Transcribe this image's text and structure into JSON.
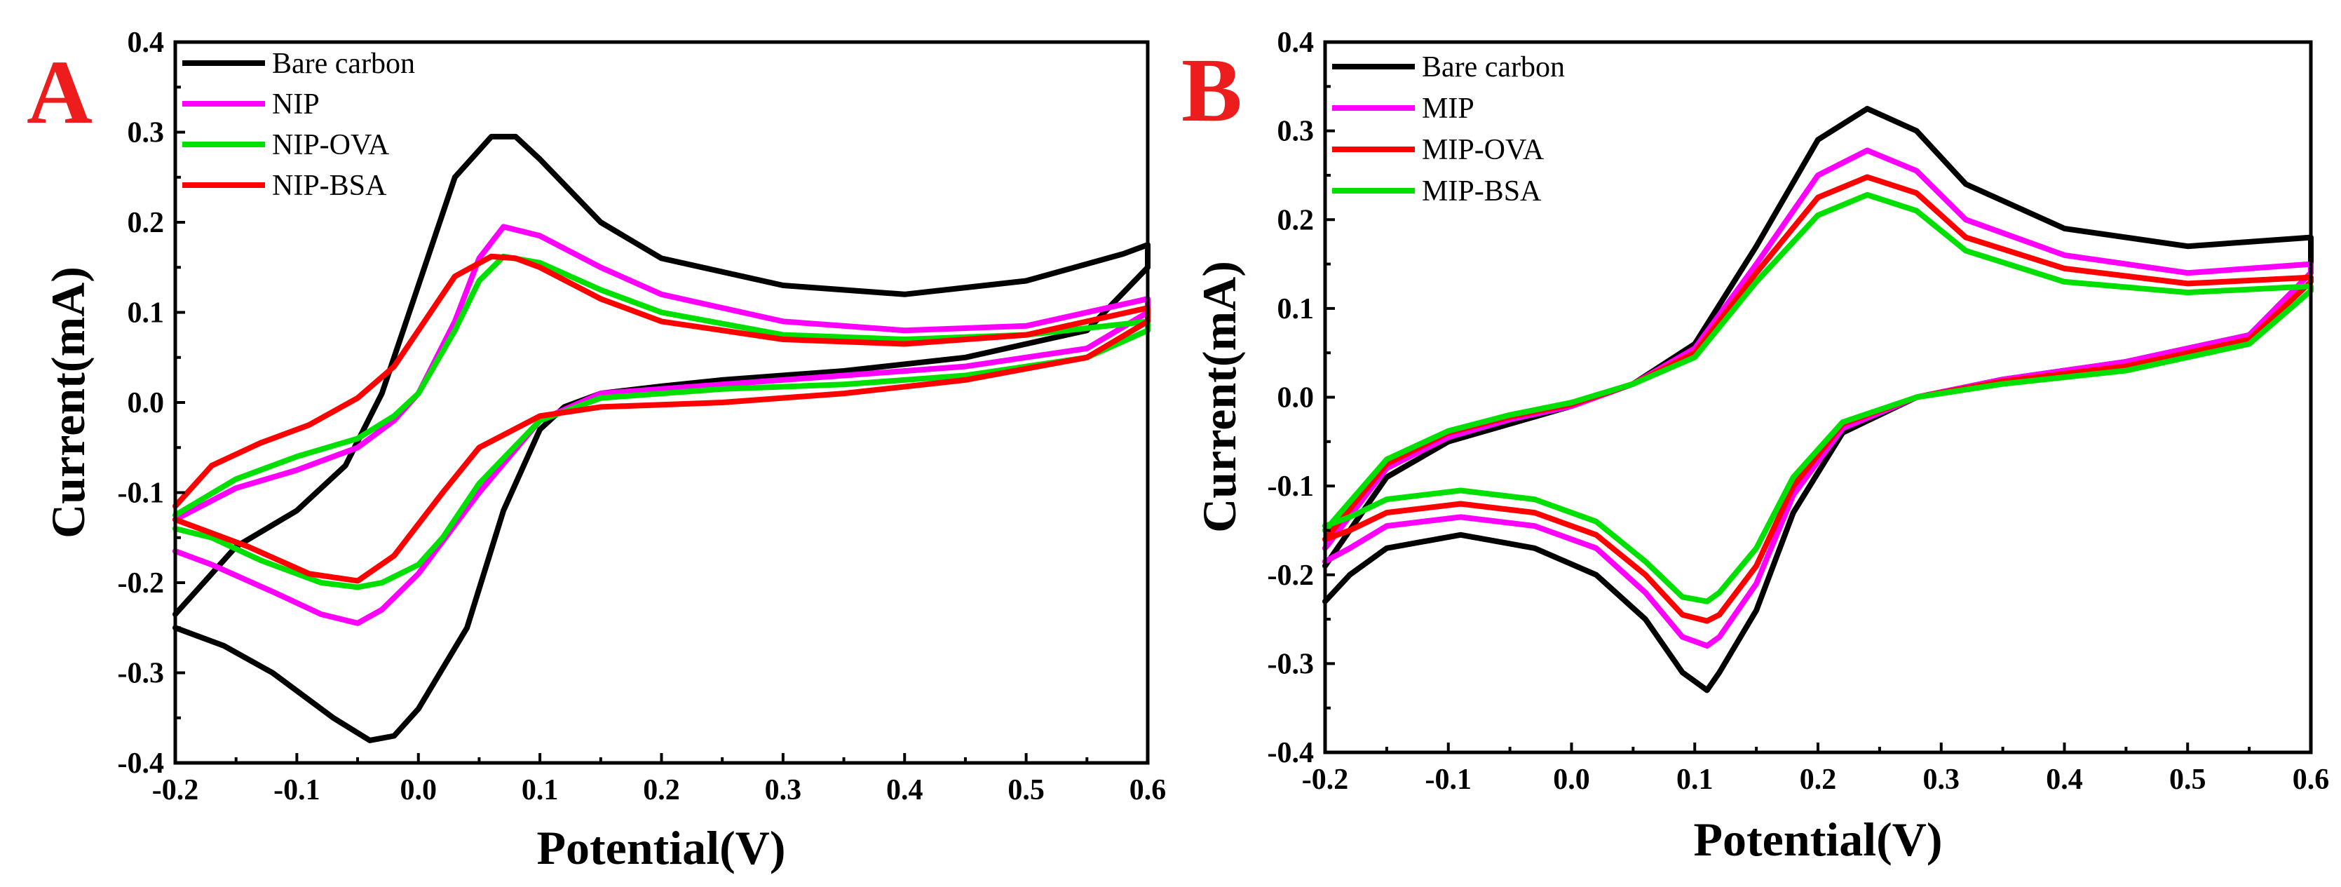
{
  "chart_data": [
    {
      "type": "line",
      "panel_label": "A",
      "xlabel": "Potential(V)",
      "ylabel": "Current(mA)",
      "xlim": [
        -0.2,
        0.6
      ],
      "ylim": [
        -0.4,
        0.4
      ],
      "xticks": [
        "-0.2",
        "-0.1",
        "0.0",
        "0.1",
        "0.2",
        "0.3",
        "0.4",
        "0.5",
        "0.6"
      ],
      "yticks": [
        "0.4",
        "0.3",
        "0.2",
        "0.1",
        "0.0",
        "-0.1",
        "-0.2",
        "-0.3",
        "-0.4"
      ],
      "legend_position": "top-left",
      "series": [
        {
          "name": "Bare carbon",
          "color": "#000000",
          "x": [
            -0.2,
            -0.15,
            -0.1,
            -0.06,
            -0.03,
            0.0,
            0.03,
            0.06,
            0.08,
            0.1,
            0.15,
            0.2,
            0.3,
            0.4,
            0.5,
            0.58,
            0.6,
            0.6,
            0.55,
            0.45,
            0.35,
            0.25,
            0.2,
            0.15,
            0.12,
            0.1,
            0.07,
            0.04,
            0.0,
            -0.02,
            -0.04,
            -0.07,
            -0.12,
            -0.16,
            -0.2
          ],
          "y": [
            -0.235,
            -0.16,
            -0.12,
            -0.07,
            0.01,
            0.13,
            0.25,
            0.295,
            0.295,
            0.27,
            0.2,
            0.16,
            0.13,
            0.12,
            0.135,
            0.165,
            0.175,
            0.15,
            0.08,
            0.05,
            0.035,
            0.025,
            0.018,
            0.01,
            -0.005,
            -0.03,
            -0.12,
            -0.25,
            -0.34,
            -0.37,
            -0.375,
            -0.35,
            -0.3,
            -0.27,
            -0.25
          ]
        },
        {
          "name": "NIP",
          "color": "#ff00ff",
          "x": [
            -0.2,
            -0.15,
            -0.1,
            -0.05,
            -0.02,
            0.0,
            0.03,
            0.05,
            0.07,
            0.1,
            0.15,
            0.2,
            0.3,
            0.4,
            0.5,
            0.6,
            0.6,
            0.55,
            0.45,
            0.35,
            0.25,
            0.15,
            0.1,
            0.05,
            0.0,
            -0.03,
            -0.05,
            -0.08,
            -0.12,
            -0.17,
            -0.2
          ],
          "y": [
            -0.13,
            -0.095,
            -0.075,
            -0.05,
            -0.02,
            0.01,
            0.09,
            0.16,
            0.195,
            0.185,
            0.15,
            0.12,
            0.09,
            0.08,
            0.085,
            0.115,
            0.1,
            0.06,
            0.04,
            0.03,
            0.02,
            0.01,
            -0.02,
            -0.1,
            -0.19,
            -0.23,
            -0.245,
            -0.235,
            -0.21,
            -0.18,
            -0.165
          ]
        },
        {
          "name": "NIP-OVA",
          "color": "#00e000",
          "x": [
            -0.2,
            -0.15,
            -0.1,
            -0.05,
            -0.02,
            0.0,
            0.03,
            0.05,
            0.07,
            0.1,
            0.15,
            0.2,
            0.3,
            0.4,
            0.5,
            0.6,
            0.6,
            0.55,
            0.45,
            0.35,
            0.25,
            0.15,
            0.1,
            0.05,
            0.02,
            0.0,
            -0.03,
            -0.05,
            -0.08,
            -0.13,
            -0.17,
            -0.2
          ],
          "y": [
            -0.125,
            -0.085,
            -0.06,
            -0.04,
            -0.015,
            0.01,
            0.08,
            0.135,
            0.162,
            0.155,
            0.125,
            0.1,
            0.075,
            0.07,
            0.075,
            0.09,
            0.08,
            0.05,
            0.03,
            0.02,
            0.015,
            0.005,
            -0.02,
            -0.09,
            -0.15,
            -0.18,
            -0.2,
            -0.205,
            -0.2,
            -0.175,
            -0.15,
            -0.14
          ]
        },
        {
          "name": "NIP-BSA",
          "color": "#ff0000",
          "x": [
            -0.2,
            -0.17,
            -0.13,
            -0.09,
            -0.05,
            -0.02,
            0.0,
            0.03,
            0.06,
            0.08,
            0.1,
            0.15,
            0.2,
            0.3,
            0.4,
            0.5,
            0.6,
            0.6,
            0.55,
            0.45,
            0.35,
            0.25,
            0.15,
            0.1,
            0.05,
            0.02,
            -0.02,
            -0.05,
            -0.09,
            -0.14,
            -0.2
          ],
          "y": [
            -0.115,
            -0.07,
            -0.045,
            -0.025,
            0.005,
            0.04,
            0.08,
            0.14,
            0.162,
            0.16,
            0.15,
            0.115,
            0.09,
            0.07,
            0.065,
            0.075,
            0.105,
            0.09,
            0.05,
            0.025,
            0.01,
            0.0,
            -0.005,
            -0.015,
            -0.05,
            -0.1,
            -0.17,
            -0.198,
            -0.19,
            -0.16,
            -0.13
          ]
        }
      ]
    },
    {
      "type": "line",
      "panel_label": "B",
      "xlabel": "Potential(V)",
      "ylabel": "Current(mA)",
      "xlim": [
        -0.2,
        0.6
      ],
      "ylim": [
        -0.4,
        0.4
      ],
      "xticks": [
        "-0.2",
        "-0.1",
        "0.0",
        "0.1",
        "0.2",
        "0.3",
        "0.4",
        "0.5",
        "0.6"
      ],
      "yticks": [
        "0.4",
        "0.3",
        "0.2",
        "0.1",
        "0.0",
        "-0.1",
        "-0.2",
        "-0.3",
        "-0.4"
      ],
      "legend_position": "top-left",
      "series": [
        {
          "name": "Bare carbon",
          "color": "#000000",
          "x": [
            -0.2,
            -0.15,
            -0.1,
            -0.05,
            0.0,
            0.05,
            0.1,
            0.15,
            0.2,
            0.24,
            0.28,
            0.32,
            0.4,
            0.5,
            0.6,
            0.6,
            0.55,
            0.45,
            0.35,
            0.28,
            0.22,
            0.18,
            0.15,
            0.12,
            0.11,
            0.09,
            0.06,
            0.02,
            -0.03,
            -0.09,
            -0.15,
            -0.18,
            -0.2
          ],
          "y": [
            -0.19,
            -0.09,
            -0.05,
            -0.03,
            -0.01,
            0.015,
            0.06,
            0.17,
            0.29,
            0.325,
            0.3,
            0.24,
            0.19,
            0.17,
            0.18,
            0.14,
            0.07,
            0.04,
            0.02,
            0.0,
            -0.04,
            -0.13,
            -0.24,
            -0.31,
            -0.33,
            -0.31,
            -0.25,
            -0.2,
            -0.17,
            -0.155,
            -0.17,
            -0.2,
            -0.23
          ]
        },
        {
          "name": "MIP",
          "color": "#ff00ff",
          "x": [
            -0.2,
            -0.15,
            -0.1,
            -0.05,
            0.0,
            0.05,
            0.1,
            0.15,
            0.2,
            0.24,
            0.28,
            0.32,
            0.4,
            0.5,
            0.6,
            0.6,
            0.55,
            0.45,
            0.35,
            0.28,
            0.22,
            0.18,
            0.15,
            0.12,
            0.11,
            0.09,
            0.06,
            0.02,
            -0.03,
            -0.09,
            -0.15,
            -0.18,
            -0.2
          ],
          "y": [
            -0.17,
            -0.08,
            -0.045,
            -0.025,
            -0.01,
            0.015,
            0.055,
            0.15,
            0.25,
            0.278,
            0.255,
            0.2,
            0.16,
            0.14,
            0.15,
            0.14,
            0.07,
            0.04,
            0.02,
            0.0,
            -0.035,
            -0.11,
            -0.21,
            -0.27,
            -0.28,
            -0.27,
            -0.22,
            -0.17,
            -0.145,
            -0.135,
            -0.145,
            -0.17,
            -0.185
          ]
        },
        {
          "name": "MIP-OVA",
          "color": "#ff0000",
          "x": [
            -0.2,
            -0.15,
            -0.1,
            -0.05,
            0.0,
            0.05,
            0.1,
            0.15,
            0.2,
            0.24,
            0.28,
            0.32,
            0.4,
            0.5,
            0.6,
            0.6,
            0.55,
            0.45,
            0.35,
            0.28,
            0.22,
            0.18,
            0.15,
            0.12,
            0.11,
            0.09,
            0.06,
            0.02,
            -0.03,
            -0.09,
            -0.15,
            -0.18,
            -0.2
          ],
          "y": [
            -0.16,
            -0.075,
            -0.04,
            -0.022,
            -0.008,
            0.015,
            0.05,
            0.14,
            0.225,
            0.248,
            0.23,
            0.18,
            0.145,
            0.128,
            0.135,
            0.13,
            0.065,
            0.035,
            0.018,
            0.0,
            -0.03,
            -0.1,
            -0.19,
            -0.245,
            -0.252,
            -0.245,
            -0.2,
            -0.155,
            -0.13,
            -0.12,
            -0.13,
            -0.15,
            -0.16
          ]
        },
        {
          "name": "MIP-BSA",
          "color": "#00e000",
          "x": [
            -0.2,
            -0.15,
            -0.1,
            -0.05,
            0.0,
            0.05,
            0.1,
            0.15,
            0.2,
            0.24,
            0.28,
            0.32,
            0.4,
            0.5,
            0.6,
            0.6,
            0.55,
            0.45,
            0.35,
            0.28,
            0.22,
            0.18,
            0.15,
            0.12,
            0.11,
            0.09,
            0.06,
            0.02,
            -0.03,
            -0.09,
            -0.15,
            -0.18,
            -0.2
          ],
          "y": [
            -0.15,
            -0.07,
            -0.038,
            -0.02,
            -0.006,
            0.015,
            0.045,
            0.13,
            0.205,
            0.228,
            0.21,
            0.165,
            0.13,
            0.118,
            0.125,
            0.12,
            0.06,
            0.03,
            0.015,
            0.0,
            -0.028,
            -0.09,
            -0.17,
            -0.22,
            -0.23,
            -0.225,
            -0.185,
            -0.14,
            -0.115,
            -0.105,
            -0.115,
            -0.135,
            -0.145
          ]
        }
      ]
    }
  ]
}
